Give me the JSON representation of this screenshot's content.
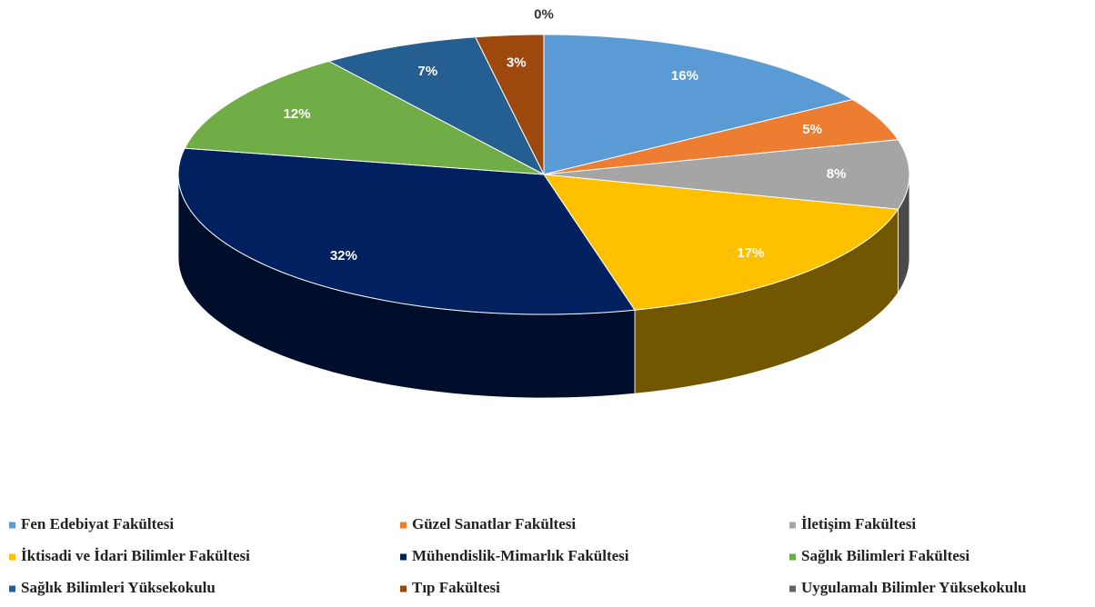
{
  "chart_data": {
    "type": "pie3d",
    "categories": [
      "Fen Edebiyat Fakültesi",
      "Güzel Sanatlar Fakültesi",
      "İletişim Fakültesi",
      "İktisadi ve İdari Bilimler Fakültesi",
      "Mühendislik-Mimarlık Fakültesi",
      "Sağlık Bilimleri Fakültesi",
      "Sağlık Bilimleri Yüksekokulu",
      "Tıp Fakültesi",
      "Uygulamalı Bilimler Yüksekokulu"
    ],
    "values": [
      16,
      5,
      8,
      17,
      32,
      12,
      7,
      3,
      0
    ],
    "value_labels": [
      "16%",
      "5%",
      "8%",
      "17%",
      "32%",
      "12%",
      "7%",
      "3%",
      "0%"
    ],
    "colors": [
      "#5b9bd5",
      "#ed7d31",
      "#a5a5a5",
      "#ffc000",
      "#002060",
      "#70ad47",
      "#255e91",
      "#9e480e",
      "#636363"
    ],
    "legend": "bottom"
  }
}
